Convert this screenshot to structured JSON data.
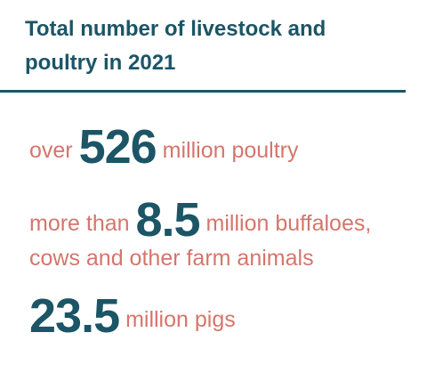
{
  "header": {
    "title": "Total number of livestock and poultry in 2021"
  },
  "items": [
    {
      "prefix": "over",
      "number": 526,
      "suffix": "million poultry"
    },
    {
      "prefix": "more than",
      "number": 8.5,
      "suffix": "million buffaloes, cows and other farm animals"
    },
    {
      "number": 23.5,
      "suffix": "million pigs"
    }
  ]
}
